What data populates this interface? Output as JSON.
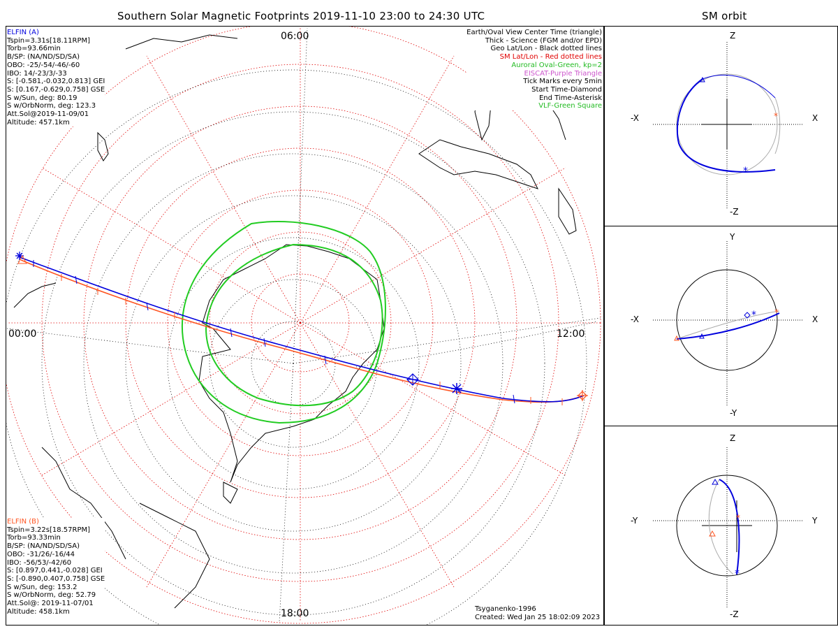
{
  "title": "Southern Solar Magnetic Footprints 2019-11-10 23:00 to 24:30 UTC",
  "orbit_title": "SM orbit",
  "legend": [
    {
      "text": "Earth/Oval View Center Time (triangle)",
      "color": "#000000"
    },
    {
      "text": "Thick - Science (FGM and/or EPD)",
      "color": "#000000"
    },
    {
      "text": "Geo Lat/Lon - Black dotted lines",
      "color": "#000000"
    },
    {
      "text": "SM Lat/Lon - Red dotted lines",
      "color": "#e00000"
    },
    {
      "text": "Auroral Oval-Green, kp=2",
      "color": "#22bb22"
    },
    {
      "text": "EISCAT-Purple Triangle",
      "color": "#cc55cc"
    },
    {
      "text": "Tick Marks every 5min",
      "color": "#000000"
    },
    {
      "text": "Start Time-Diamond",
      "color": "#000000"
    },
    {
      "text": "End Time-Asterisk",
      "color": "#000000"
    },
    {
      "text": "VLF-Green Square",
      "color": "#22bb22"
    }
  ],
  "elfin_a": {
    "name": "ELFIN (A)",
    "color": "#0000dd",
    "lines": [
      "Tspin=3.31s[18.11RPM]",
      "Torb=93.66min",
      "B/SP: (NA/ND/SD/SA)",
      "OBO: -25/-54/-46/-60",
      "IBO: 14/-23/3/-33",
      "S: [-0.581,-0.032,0.813] GEI",
      "S: [0.167,-0.629,0.758] GSE",
      "S w/Sun, deg: 80.19",
      "S w/OrbNorm, deg: 123.3",
      "Att.Sol@2019-11-09/01",
      "Altitude: 457.1km"
    ]
  },
  "elfin_b": {
    "name": "ELFIN (B)",
    "color": "#ff5522",
    "lines": [
      "Tspin=3.22s[18.57RPM]",
      "Torb=93.33min",
      "B/SP: (NA/ND/SD/SA)",
      "OBO: -31/26/-16/44",
      "IBO: -56/53/-42/60",
      "S: [0.897,0.441,-0.028] GEI",
      "S: [-0.890,0.407,0.758] GSE",
      "S w/Sun, deg: 153.2",
      "S w/OrbNorm, deg: 52.79",
      "Att.Sol@: 2019-11-07/01",
      "Altitude: 458.1km"
    ]
  },
  "map_labels": {
    "top": "06:00",
    "left": "00:00",
    "right": "12:00",
    "bottom": "18:00"
  },
  "model": "Tsyganenko-1996",
  "created": "Created: Wed Jan 25 18:02:09 2023",
  "orbit_panels": [
    {
      "top": "Z",
      "bottom": "-Z",
      "left": "-X",
      "right": "X"
    },
    {
      "top": "Y",
      "bottom": "-Y",
      "left": "-X",
      "right": "X"
    },
    {
      "top": "Z",
      "bottom": "-Z",
      "left": "-Y",
      "right": "Y"
    }
  ],
  "colors": {
    "elfin_a": "#0000dd",
    "elfin_b": "#ff5522",
    "oval": "#22cc22",
    "sm_grid": "#e00000",
    "geo_grid": "#000000"
  }
}
